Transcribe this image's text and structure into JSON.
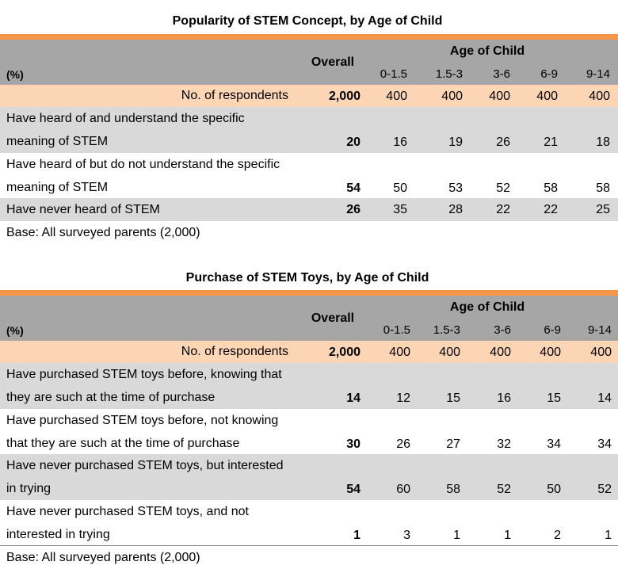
{
  "table1": {
    "title": "Popularity of STEM Concept, by Age of Child",
    "header": {
      "pct": "(%)",
      "overall": "Overall",
      "age_title": "Age of Child",
      "ages": [
        "0-1.5",
        "1.5-3",
        "3-6",
        "6-9",
        "9-14"
      ]
    },
    "respondents": {
      "label": "No. of respondents",
      "overall": "2,000",
      "values": [
        "400",
        "400",
        "400",
        "400",
        "400"
      ]
    },
    "rows": [
      {
        "line1": "Have heard of and understand the specific",
        "line2": "meaning of STEM",
        "overall": "20",
        "values": [
          "16",
          "19",
          "26",
          "21",
          "18"
        ]
      },
      {
        "line1": "Have heard of but do not understand the specific",
        "line2": "meaning of STEM",
        "overall": "54",
        "values": [
          "50",
          "53",
          "52",
          "58",
          "58"
        ]
      },
      {
        "line1": "Have never heard of STEM",
        "overall": "26",
        "values": [
          "35",
          "28",
          "22",
          "22",
          "25"
        ]
      }
    ],
    "base": "Base: All surveyed parents (2,000)"
  },
  "table2": {
    "title": "Purchase of STEM Toys, by Age of Child",
    "header": {
      "pct": "(%)",
      "overall": "Overall",
      "age_title": "Age of Child",
      "ages": [
        "0-1.5",
        "1.5-3",
        "3-6",
        "6-9",
        "9-14"
      ]
    },
    "respondents": {
      "label": "No. of respondents",
      "overall": "2,000",
      "values": [
        "400",
        "400",
        "400",
        "400",
        "400"
      ]
    },
    "rows": [
      {
        "line1": "Have purchased STEM toys before, knowing that",
        "line2": "they are such at the time of purchase",
        "overall": "14",
        "values": [
          "12",
          "15",
          "16",
          "15",
          "14"
        ]
      },
      {
        "line1": "Have purchased STEM toys before, not knowing",
        "line2": "that they are such at the time of purchase",
        "overall": "30",
        "values": [
          "26",
          "27",
          "32",
          "34",
          "34"
        ]
      },
      {
        "line1": "Have never purchased STEM toys, but interested",
        "line2": "in trying",
        "overall": "54",
        "values": [
          "60",
          "58",
          "52",
          "50",
          "52"
        ]
      },
      {
        "line1": "Have never purchased STEM toys, and not",
        "line2": "interested in trying",
        "overall": "1",
        "values": [
          "3",
          "1",
          "1",
          "2",
          "1"
        ]
      }
    ],
    "base": "Base: All surveyed parents (2,000)"
  }
}
